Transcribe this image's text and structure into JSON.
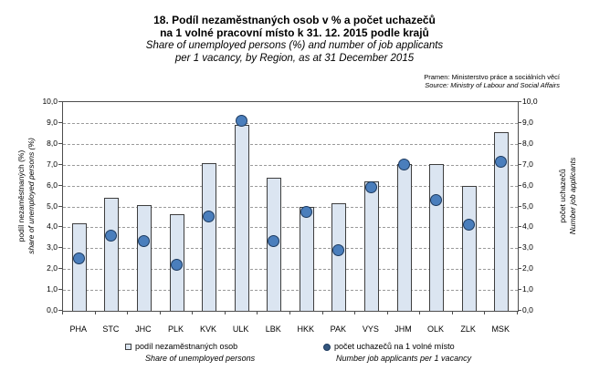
{
  "title": {
    "line1_cs": "18. Podíl nezaměstnaných osob v % a počet uchazečů",
    "line2_cs": "na 1 volné pracovní místo k 31. 12. 2015 podle krajů",
    "line1_en": "Share of unemployed persons (%) and number of job applicants",
    "line2_en": "per 1 vacancy, by Region, as at 31 December 2015"
  },
  "source": {
    "line_cs": "Pramen: Ministerstvo práce a sociálních věcí",
    "line_en": "Source: Ministry of Labour and Social Affairs"
  },
  "axes": {
    "left_label_cs": "podíl nezaměstnaných (%)",
    "left_label_en": "share of unemployed persons (%)",
    "right_label_cs": "počet uchazečů",
    "right_label_en": "Number job applicants"
  },
  "legend": {
    "bars_cs": "podíl nezaměstnaných osob",
    "bars_en": "Share of unemployed persons",
    "points_cs": "počet uchazečů na 1 volné místo",
    "points_en": "Number job applicants per 1 vacancy"
  },
  "colors": {
    "bar_fill": "#dbe5f1",
    "bar_border": "#3e3e3e",
    "point_fill": "#4a7ebc",
    "point_border": "#1d3a5f",
    "grid": "#9a9a9a",
    "plot_border": "#4d4d4d"
  },
  "chart_data": {
    "type": "bar",
    "subtype": "bar + scatter overlay, dual value axes (same 0-10 scale)",
    "categories": [
      "PHA",
      "STC",
      "JHC",
      "PLK",
      "KVK",
      "ULK",
      "LBK",
      "HKK",
      "PAK",
      "VYS",
      "JHM",
      "OLK",
      "ZLK",
      "MSK"
    ],
    "series": [
      {
        "name": "podíl nezaměstnaných osob / Share of unemployed persons",
        "type": "bar",
        "axis": "left",
        "values": [
          4.2,
          5.41,
          5.07,
          4.62,
          7.06,
          8.91,
          6.36,
          4.96,
          5.14,
          6.22,
          7.01,
          7.01,
          5.98,
          8.56
        ]
      },
      {
        "name": "počet uchazečů na 1 volné místo / Number job applicants per 1 vacancy",
        "type": "scatter",
        "axis": "right",
        "values": [
          2.5,
          3.6,
          3.3,
          2.2,
          4.5,
          9.1,
          3.3,
          4.7,
          2.9,
          5.9,
          7.0,
          5.3,
          4.1,
          7.1
        ]
      }
    ],
    "title": "18. Podíl nezaměstnaných osob v % a počet uchazečů na 1 volné pracovní místo k 31. 12. 2015 podle krajů",
    "subtitle": "Share of unemployed persons (%) and number of job applicants per 1 vacancy, by Region, as at 31 December 2015",
    "xlabel": "",
    "ylabel_left": "podíl nezaměstnaných (%) / share of unemployed persons (%)",
    "ylabel_right": "počet uchazečů / Number job applicants",
    "ylim": [
      0,
      10
    ],
    "ytick_step": 1.0,
    "ytick_labels": [
      "0,0",
      "1,0",
      "2,0",
      "3,0",
      "4,0",
      "5,0",
      "6,0",
      "7,0",
      "8,0",
      "9,0",
      "10,0"
    ],
    "grid": "horizontal dashed",
    "legend_position": "bottom"
  }
}
